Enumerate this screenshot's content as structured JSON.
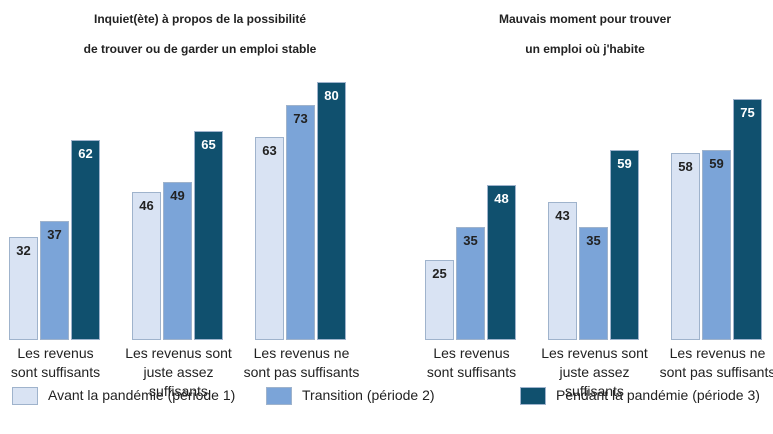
{
  "chart_data": [
    {
      "type": "bar",
      "title": "Inquiet(ète) à propos de la possibilité\nde trouver ou de garder un emploi stable",
      "categories": [
        "Les revenus\nsont suffisants",
        "Les revenus sont\njuste assez suffisants",
        "Les revenus ne\nsont pas suffisants"
      ],
      "series": [
        {
          "values": [
            32,
            46,
            63
          ]
        },
        {
          "values": [
            37,
            49,
            73
          ]
        },
        {
          "values": [
            62,
            65,
            80
          ]
        }
      ]
    },
    {
      "type": "bar",
      "title": "Mauvais moment pour trouver\nun emploi où j'habite",
      "categories": [
        "Les revenus\nsont suffisants",
        "Les revenus sont\njuste assez suffisants",
        "Les revenus ne\nsont pas suffisants"
      ],
      "series": [
        {
          "values": [
            25,
            43,
            58
          ]
        },
        {
          "values": [
            35,
            35,
            59
          ]
        },
        {
          "values": [
            48,
            59,
            75
          ]
        }
      ]
    }
  ],
  "legend": [
    {
      "name": "Avant la pandémie (période 1)",
      "color": "#d9e3f3"
    },
    {
      "name": "Transition (période 2)",
      "color": "#7ba4d8"
    },
    {
      "name": "Pendant la pandémie (période 3)",
      "color": "#10506e"
    }
  ]
}
